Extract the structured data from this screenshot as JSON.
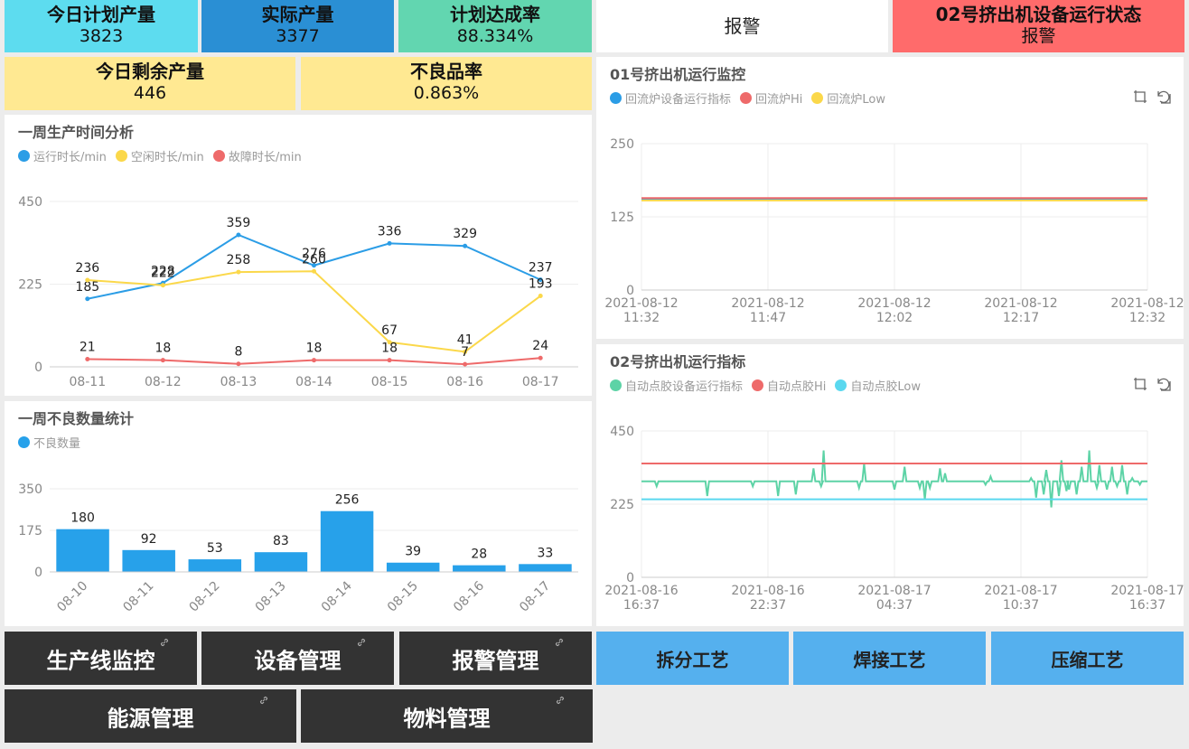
{
  "kpis": {
    "plan": {
      "title": "今日计划产量",
      "value": "3823",
      "bg": "#5ddcef"
    },
    "actual": {
      "title": "实际产量",
      "value": "3377",
      "bg": "#2a8fd4"
    },
    "rate": {
      "title": "计划达成率",
      "value": "88.334%",
      "bg": "#62d6b0"
    },
    "alarm": {
      "text": "报警"
    },
    "status02": {
      "title": "02号挤出机设备运行状态",
      "value": "报警",
      "bg": "#ff6b6b"
    },
    "remain": {
      "title": "今日剩余产量",
      "value": "446",
      "bg": "#ffe992"
    },
    "defect_rate": {
      "title": "不良品率",
      "value": "0.863%",
      "bg": "#ffe992"
    }
  },
  "week_time": {
    "title": "一周生产时间分析",
    "legend": [
      {
        "name": "运行时长/min",
        "color": "#2b9de6"
      },
      {
        "name": "空闲时长/min",
        "color": "#fbd84a"
      },
      {
        "name": "故障时长/min",
        "color": "#ee6a6a"
      }
    ]
  },
  "week_defect": {
    "title": "一周不良数量统计",
    "legend": [
      {
        "name": "不良数量",
        "color": "#27a1ea"
      }
    ]
  },
  "monitor01": {
    "title": "01号挤出机运行监控",
    "legend": [
      {
        "name": "回流炉设备运行指标",
        "color": "#2b9de6"
      },
      {
        "name": "回流炉Hi",
        "color": "#ee6a6a"
      },
      {
        "name": "回流炉Low",
        "color": "#fbd84a"
      }
    ]
  },
  "monitor02": {
    "title": "02号挤出机运行指标",
    "legend": [
      {
        "name": "自动点胶设备运行指标",
        "color": "#5dd3a6"
      },
      {
        "name": "自动点胶Hi",
        "color": "#ee6a6a"
      },
      {
        "name": "自动点胶Low",
        "color": "#5ad8ef"
      }
    ]
  },
  "nav": {
    "line_monitor": "生产线监控",
    "equipment": "设备管理",
    "alarm_mgmt": "报警管理",
    "energy": "能源管理",
    "material": "物料管理",
    "split": "拆分工艺",
    "weld": "焊接工艺",
    "compress": "压缩工艺"
  },
  "chart_data": [
    {
      "type": "line",
      "title": "一周生产时间分析",
      "categories": [
        "08-11",
        "08-12",
        "08-13",
        "08-14",
        "08-15",
        "08-16",
        "08-17"
      ],
      "ylim": [
        0,
        450
      ],
      "yticks": [
        "0",
        "225",
        "450"
      ],
      "series": [
        {
          "name": "运行时长/min",
          "color": "#2b9de6",
          "values": [
            185,
            228,
            359,
            276,
            336,
            329,
            237
          ]
        },
        {
          "name": "空闲时长/min",
          "color": "#fbd84a",
          "values": [
            236,
            222,
            258,
            260,
            67,
            41,
            193
          ]
        },
        {
          "name": "故障时长/min",
          "color": "#ee6a6a",
          "values": [
            21,
            18,
            8,
            18,
            18,
            7,
            24
          ]
        }
      ],
      "labels": [
        [
          "185",
          "228",
          "359",
          "276",
          "336",
          "329",
          "237"
        ],
        [
          "236",
          "222",
          "258",
          "260",
          "67",
          "41",
          "193"
        ],
        [
          "21",
          "18",
          "8",
          "18",
          "18",
          "7",
          "24"
        ]
      ]
    },
    {
      "type": "bar",
      "title": "一周不良数量统计",
      "categories": [
        "08-10",
        "08-11",
        "08-12",
        "08-13",
        "08-14",
        "08-15",
        "08-16",
        "08-17"
      ],
      "values": [
        180,
        92,
        53,
        83,
        256,
        39,
        28,
        33
      ],
      "labels": [
        "180",
        "92",
        "53",
        "83",
        "256",
        "39",
        "28",
        "33"
      ],
      "ylim": [
        0,
        350
      ],
      "yticks": [
        "0",
        "175",
        "350"
      ],
      "series_name": "不良数量",
      "color": "#27a1ea"
    },
    {
      "type": "line",
      "title": "01号挤出机运行监控",
      "ylim": [
        0,
        250
      ],
      "yticks": [
        "0",
        "125",
        "250"
      ],
      "xticks": [
        [
          "2021-08-12",
          "11:32"
        ],
        [
          "2021-08-12",
          "11:47"
        ],
        [
          "2021-08-12",
          "12:02"
        ],
        [
          "2021-08-12",
          "12:17"
        ],
        [
          "2021-08-12",
          "12:32"
        ]
      ],
      "series": [
        {
          "name": "回流炉设备运行指标",
          "color": "#2b9de6",
          "constant": 155
        },
        {
          "name": "回流炉Hi",
          "color": "#ee6a6a",
          "constant": 157
        },
        {
          "name": "回流炉Low",
          "color": "#fbd84a",
          "constant": 153
        }
      ]
    },
    {
      "type": "line",
      "title": "02号挤出机运行指标",
      "ylim": [
        0,
        450
      ],
      "yticks": [
        "0",
        "225",
        "450"
      ],
      "xticks": [
        [
          "2021-08-16",
          "16:37"
        ],
        [
          "2021-08-16",
          "22:37"
        ],
        [
          "2021-08-17",
          "04:37"
        ],
        [
          "2021-08-17",
          "10:37"
        ],
        [
          "2021-08-17",
          "16:37"
        ]
      ],
      "series": [
        {
          "name": "自动点胶设备运行指标",
          "color": "#5dd3a6",
          "baseline": 295,
          "spikes": [
            [
              0.03,
              -15
            ],
            [
              0.13,
              -45
            ],
            [
              0.22,
              -15
            ],
            [
              0.27,
              -45
            ],
            [
              0.305,
              -40
            ],
            [
              0.34,
              40
            ],
            [
              0.355,
              -15
            ],
            [
              0.36,
              95
            ],
            [
              0.43,
              -20
            ],
            [
              0.44,
              55
            ],
            [
              0.5,
              -25
            ],
            [
              0.52,
              45
            ],
            [
              0.55,
              -20
            ],
            [
              0.56,
              -55
            ],
            [
              0.57,
              -20
            ],
            [
              0.59,
              40
            ],
            [
              0.6,
              25
            ],
            [
              0.68,
              -10
            ],
            [
              0.69,
              15
            ],
            [
              0.77,
              10
            ],
            [
              0.78,
              -50
            ],
            [
              0.795,
              -40
            ],
            [
              0.8,
              35
            ],
            [
              0.81,
              -80
            ],
            [
              0.825,
              -45
            ],
            [
              0.83,
              65
            ],
            [
              0.84,
              -30
            ],
            [
              0.845,
              -25
            ],
            [
              0.86,
              -40
            ],
            [
              0.87,
              45
            ],
            [
              0.885,
              95
            ],
            [
              0.9,
              -20
            ],
            [
              0.905,
              50
            ],
            [
              0.92,
              -25
            ],
            [
              0.93,
              45
            ],
            [
              0.94,
              -15
            ],
            [
              0.95,
              50
            ],
            [
              0.96,
              -40
            ],
            [
              0.97,
              10
            ],
            [
              0.985,
              -10
            ]
          ]
        },
        {
          "name": "自动点胶Hi",
          "color": "#ee6a6a",
          "constant": 350
        },
        {
          "name": "自动点胶Low",
          "color": "#5ad8ef",
          "constant": 240
        }
      ]
    }
  ]
}
